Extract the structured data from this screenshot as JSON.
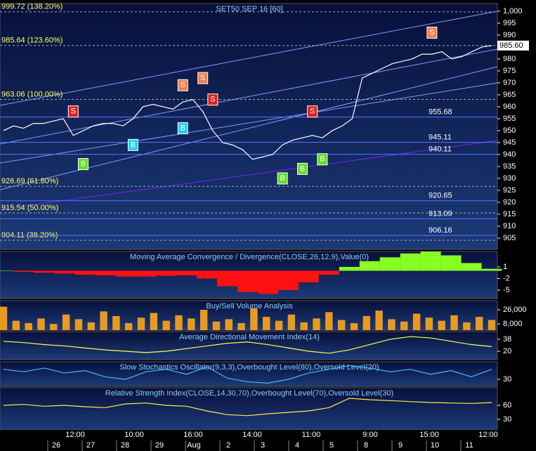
{
  "chart_data": [
    {
      "type": "line",
      "title": "SET50 SEP 16  [60]",
      "color": "#ffffff",
      "ylim": [
        900.3,
        1003.2
      ],
      "yticks": [
        905,
        910,
        915,
        920,
        925,
        930,
        935,
        940,
        945,
        950,
        955,
        960,
        965,
        970,
        975,
        980,
        985,
        990,
        995,
        {
          "value": 1000,
          "label": "1,000"
        }
      ],
      "values": [
        950,
        952,
        951,
        953,
        953,
        954,
        955,
        948,
        950,
        952,
        953,
        953,
        952,
        955,
        960,
        961,
        960,
        959,
        962,
        963,
        958,
        950,
        945,
        944,
        942,
        938,
        939,
        940,
        944,
        946,
        947,
        948,
        947,
        950,
        952,
        955,
        972,
        974,
        976,
        978,
        979,
        980,
        982,
        982,
        983,
        980,
        981,
        983,
        985,
        985.6
      ],
      "fib_levels": [
        {
          "value": 999.72,
          "label": "999.72 (138.20%)"
        },
        {
          "value": 985.64,
          "label": "985.64 (123.60%)"
        },
        {
          "value": 963.06,
          "label": "963.06 (100.00%)"
        },
        {
          "value": 926.69,
          "label": "926.69 (61.80%)"
        },
        {
          "value": 915.54,
          "label": "915.54 (50.00%)"
        },
        {
          "value": 904.11,
          "label": "904.11 (38.20%)"
        }
      ],
      "levels": [
        955.68,
        945.11,
        940.11,
        920.65,
        913.09,
        906.16
      ],
      "last_price": {
        "value": 985.6,
        "label": "985.60"
      },
      "signals": [
        {
          "label": "S",
          "index": 7,
          "value": 958
        },
        {
          "label": "B",
          "index": 8,
          "value": 936
        },
        {
          "label": "B",
          "index": 13,
          "value": 944
        },
        {
          "label": "S",
          "index": 18,
          "value": 969
        },
        {
          "label": "B",
          "index": 18,
          "value": 951
        },
        {
          "label": "S",
          "index": 20,
          "value": 972
        },
        {
          "label": "S",
          "index": 21,
          "value": 963
        },
        {
          "label": "B",
          "index": 28,
          "value": 930
        },
        {
          "label": "B",
          "index": 30,
          "value": 934
        },
        {
          "label": "S",
          "index": 31,
          "value": 958
        },
        {
          "label": "B",
          "index": 32,
          "value": 938
        },
        {
          "label": "S",
          "index": 43,
          "value": 991
        }
      ]
    },
    {
      "type": "area",
      "title": "Moving Average Convergence / Divergence(CLOSE,26,12,9),Value(0)",
      "ylim": [
        -7.2,
        5
      ],
      "yticks": [
        1,
        -2,
        -5
      ],
      "pos_color": "#88ff22",
      "neg_color": "#ff1111",
      "values": [
        0,
        -0.3,
        -0.5,
        -0.7,
        -1,
        -1.2,
        -1.5,
        -1.5,
        -1.3,
        -1.2,
        -2,
        -4,
        -5.5,
        -6,
        -5,
        -3,
        -1,
        1,
        2.5,
        3.5,
        4.5,
        5,
        4,
        2,
        0.5
      ]
    },
    {
      "type": "bar",
      "title": "Buy/Sell Volume Analysis",
      "color": "#e89a20",
      "ylim": [
        0,
        37700
      ],
      "yticks": [
        {
          "value": 26000,
          "label": "26,000"
        },
        {
          "value": 8000,
          "label": "8,000"
        }
      ],
      "values": [
        30000,
        12000,
        9000,
        15000,
        8000,
        20000,
        14000,
        10000,
        24000,
        18000,
        9000,
        16000,
        22000,
        12000,
        19000,
        15000,
        26000,
        11000,
        14000,
        9000,
        28000,
        17000,
        12000,
        20000,
        10000,
        15000,
        23000,
        13000,
        9000,
        18000,
        25000,
        14000,
        11000,
        21000,
        16000,
        12000,
        19000,
        10000,
        17000,
        13000
      ]
    },
    {
      "type": "line",
      "title": "Average Directional Movement Index(14)",
      "color": "#ffff44",
      "ylim": [
        7.3,
        49.6
      ],
      "yticks": [
        38,
        20
      ],
      "values": [
        35,
        33,
        30,
        28,
        25,
        22,
        20,
        18,
        20,
        24,
        28,
        32,
        34,
        30,
        25,
        20,
        17,
        22,
        30,
        38,
        42,
        40,
        35,
        30,
        27
      ]
    },
    {
      "type": "line",
      "title": "Slow Stochastics Oscillator(9,3,3),Overbought Level(80),Oversold Level(20)",
      "color": "#44bbff",
      "ylim": [
        2,
        100
      ],
      "yticks": [
        30
      ],
      "values": [
        70,
        60,
        75,
        55,
        65,
        40,
        30,
        60,
        70,
        50,
        80,
        35,
        20,
        15,
        30,
        55,
        70,
        85,
        75,
        60,
        70,
        50,
        65,
        40,
        70
      ]
    },
    {
      "type": "line",
      "title": "Relative Strength Index(CLOSE,14,30,70),Overbought Level(70),Oversold Level(30)",
      "color": "#ffee44",
      "ylim": [
        7.5,
        97.5
      ],
      "yticks": [
        60,
        30
      ],
      "values": [
        60,
        62,
        58,
        60,
        57,
        55,
        63,
        65,
        60,
        58,
        48,
        40,
        38,
        42,
        45,
        48,
        55,
        75,
        72,
        70,
        68,
        66,
        65,
        64,
        66
      ]
    }
  ],
  "time_axis": {
    "times": [
      "12:00",
      "10:00",
      "16:00",
      "14:00",
      "11:00",
      "9:00",
      "15:00",
      "12:00"
    ],
    "dates": [
      "26",
      "27",
      "28",
      "29",
      "Aug",
      "2",
      "3",
      "4",
      "5",
      "8",
      "9",
      "10",
      "11"
    ]
  }
}
